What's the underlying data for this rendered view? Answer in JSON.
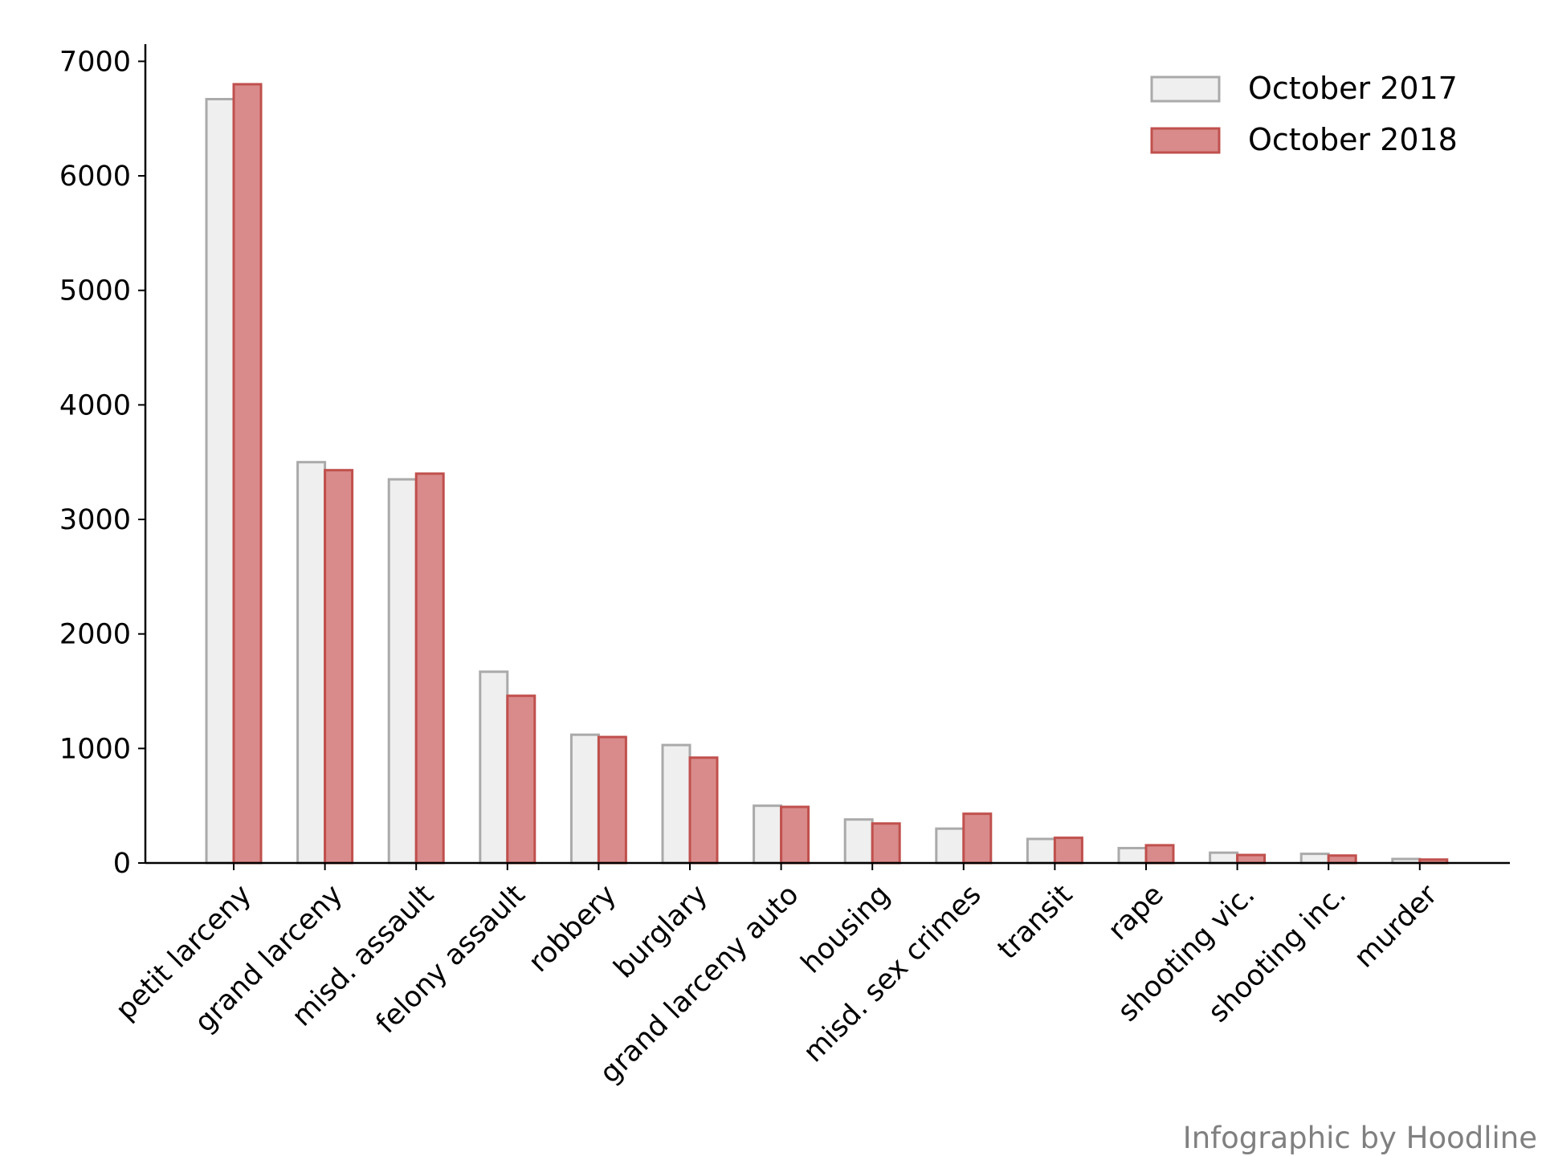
{
  "chart_data": {
    "type": "bar",
    "title": "",
    "xlabel": "",
    "ylabel": "",
    "ylim": [
      0,
      7150
    ],
    "yticks": [
      0,
      1000,
      2000,
      3000,
      4000,
      5000,
      6000,
      7000
    ],
    "grid": false,
    "legend_position": "top-right",
    "categories": [
      "petit larceny",
      "grand larceny",
      "misd. assault",
      "felony assault",
      "robbery",
      "burglary",
      "grand larceny auto",
      "housing",
      "misd. sex crimes",
      "transit",
      "rape",
      "shooting vic.",
      "shooting inc.",
      "murder"
    ],
    "series": [
      {
        "name": "October 2017",
        "values": [
          6670,
          3500,
          3350,
          1670,
          1120,
          1030,
          500,
          380,
          300,
          210,
          130,
          90,
          80,
          35
        ],
        "fill": "#efefef",
        "stroke": "#aaaaaa"
      },
      {
        "name": "October 2018",
        "values": [
          6800,
          3430,
          3400,
          1460,
          1100,
          920,
          490,
          345,
          430,
          220,
          155,
          70,
          65,
          30
        ],
        "fill": "#d98b8b",
        "stroke": "#c0504d"
      }
    ]
  },
  "credit": "Infographic by Hoodline"
}
